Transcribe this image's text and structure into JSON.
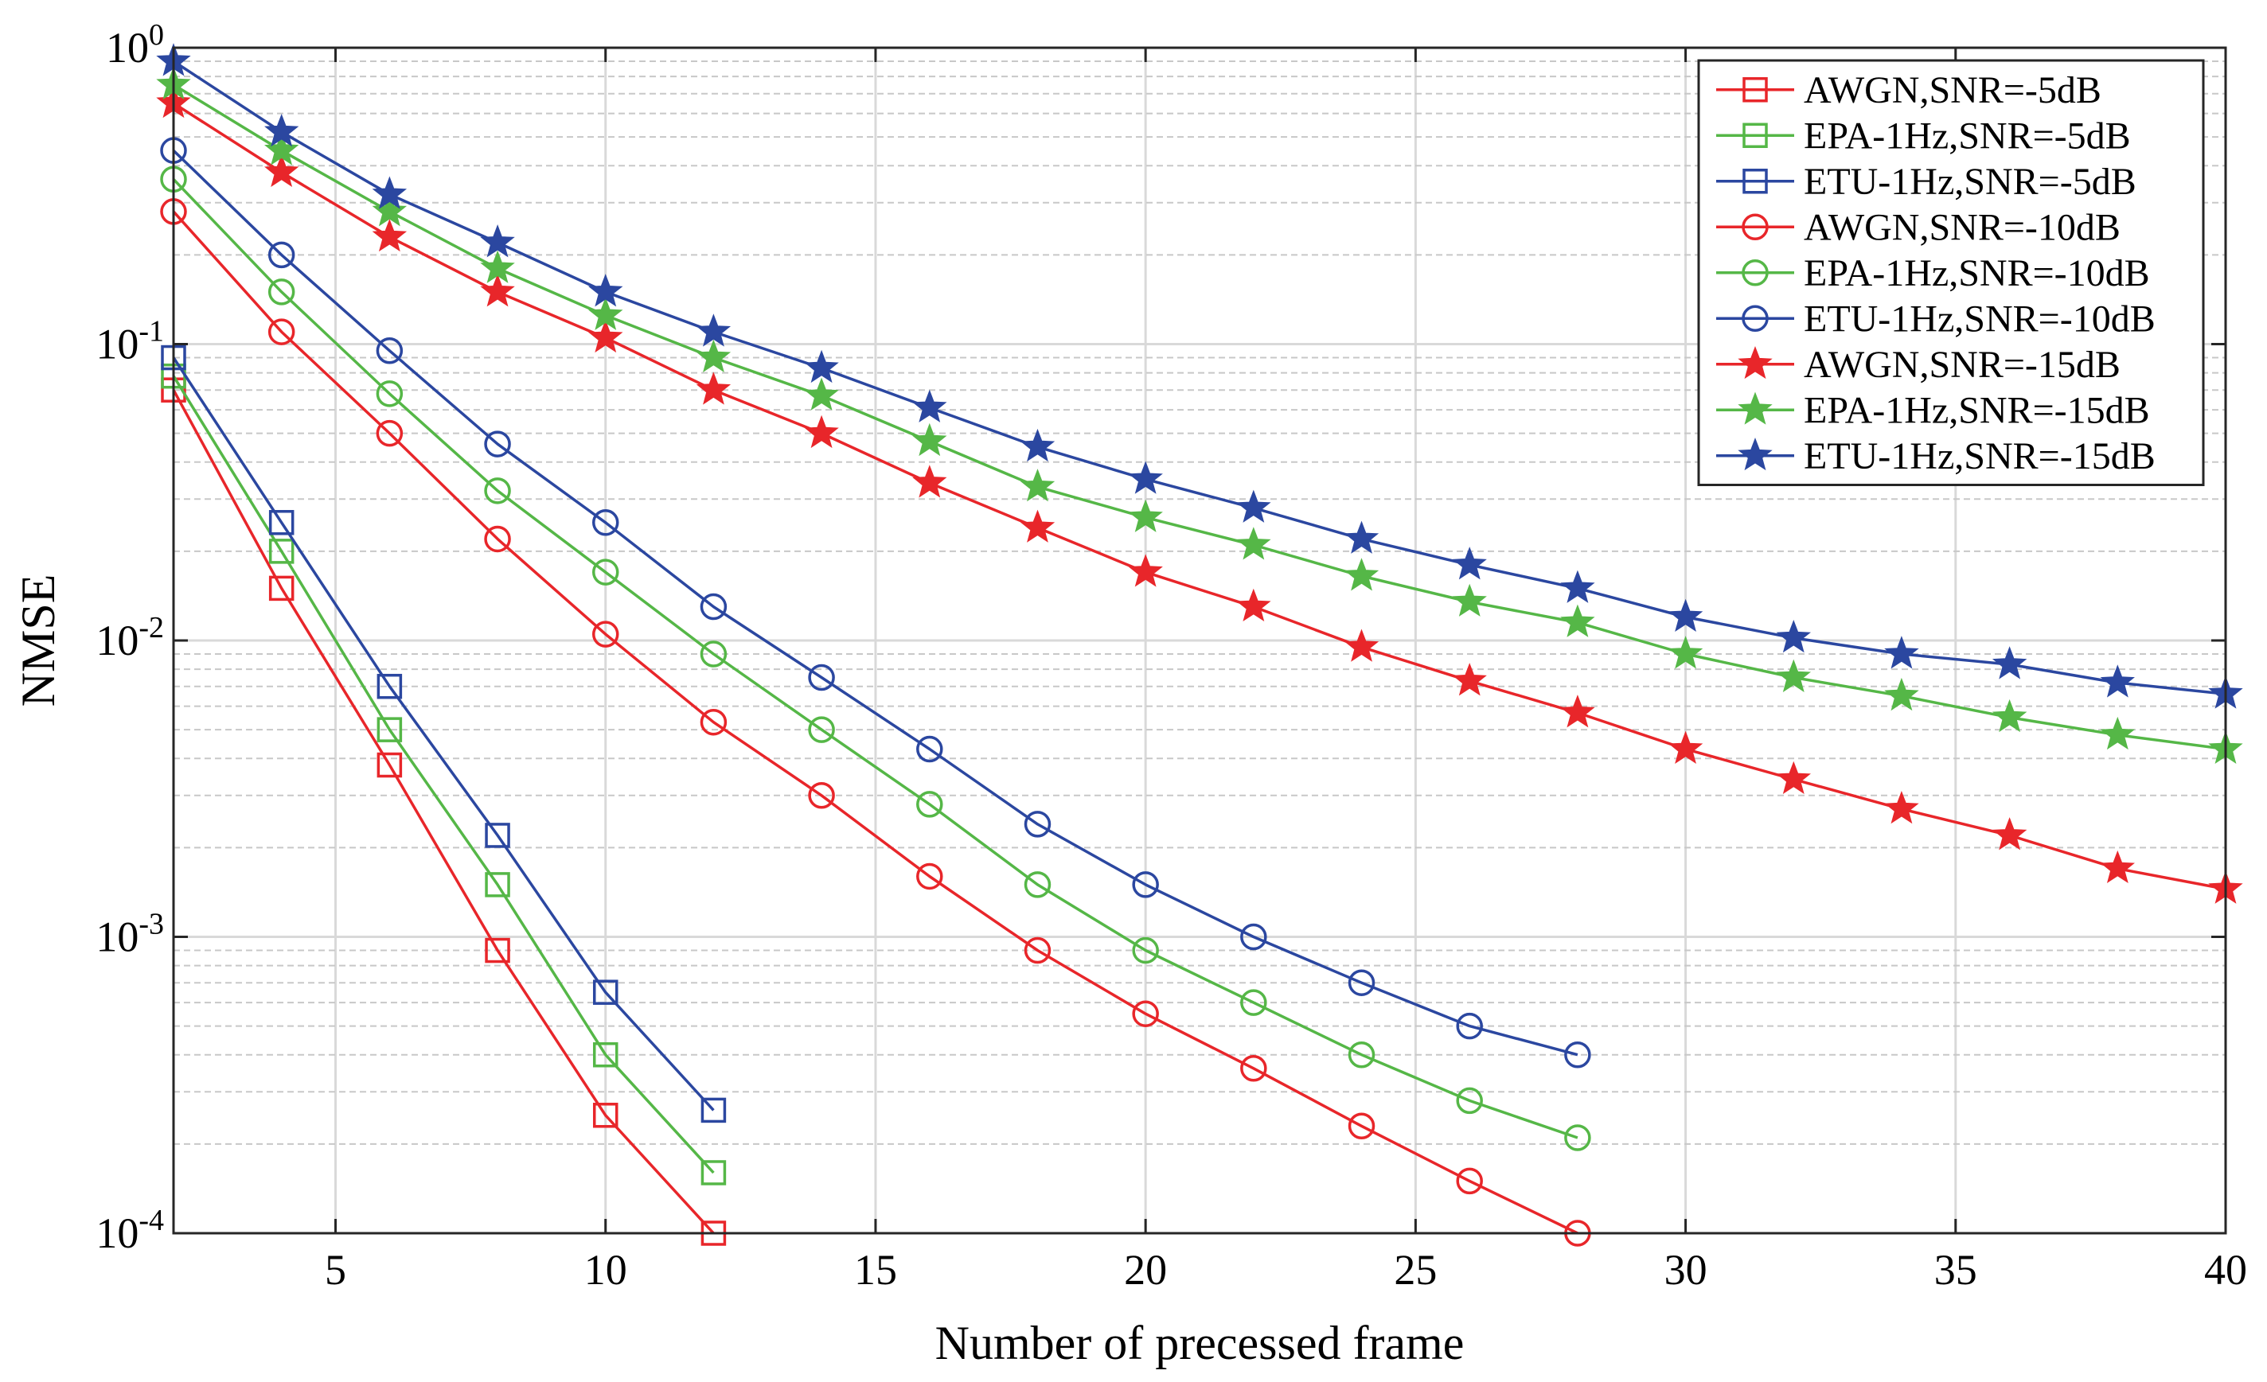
{
  "chart_data": {
    "type": "line",
    "title": "",
    "xlabel": "Number of precessed frame",
    "ylabel": "NMSE",
    "xscale": "linear",
    "yscale": "log",
    "xlim": [
      2,
      40
    ],
    "ylim": [
      0.0001,
      1
    ],
    "xticks": [
      5,
      10,
      15,
      20,
      25,
      30,
      35,
      40
    ],
    "xtick_labels": [
      "5",
      "10",
      "15",
      "20",
      "25",
      "30",
      "35",
      "40"
    ],
    "yticks": [
      0.0001,
      0.001,
      0.01,
      0.1,
      1
    ],
    "ytick_labels": [
      {
        "base": "10",
        "exp": "-4"
      },
      {
        "base": "10",
        "exp": "-3"
      },
      {
        "base": "10",
        "exp": "-2"
      },
      {
        "base": "10",
        "exp": "-1"
      },
      {
        "base": "10",
        "exp": "0"
      }
    ],
    "grid": true,
    "legend_position": "top-right",
    "colors": {
      "red": "#e8262a",
      "green": "#55b747",
      "blue": "#2b47a0"
    },
    "series": [
      {
        "name": "AWGN,SNR=-5dB",
        "color": "red",
        "marker": "square",
        "x": [
          2,
          4,
          6,
          8,
          10,
          12
        ],
        "y": [
          0.07,
          0.015,
          0.0038,
          0.0009,
          0.00025,
          0.0001
        ]
      },
      {
        "name": "EPA-1Hz,SNR=-5dB",
        "color": "green",
        "marker": "square",
        "x": [
          2,
          4,
          6,
          8,
          10,
          12
        ],
        "y": [
          0.078,
          0.02,
          0.005,
          0.0015,
          0.0004,
          0.00016
        ]
      },
      {
        "name": "ETU-1Hz,SNR=-5dB",
        "color": "blue",
        "marker": "square",
        "x": [
          2,
          4,
          6,
          8,
          10,
          12
        ],
        "y": [
          0.09,
          0.025,
          0.007,
          0.0022,
          0.00065,
          0.00026
        ]
      },
      {
        "name": "AWGN,SNR=-10dB",
        "color": "red",
        "marker": "circle",
        "x": [
          2,
          4,
          6,
          8,
          10,
          12,
          14,
          16,
          18,
          20,
          22,
          24,
          26,
          28
        ],
        "y": [
          0.28,
          0.11,
          0.05,
          0.022,
          0.0105,
          0.0053,
          0.003,
          0.0016,
          0.0009,
          0.00055,
          0.00036,
          0.00023,
          0.00015,
          0.0001
        ]
      },
      {
        "name": "EPA-1Hz,SNR=-10dB",
        "color": "green",
        "marker": "circle",
        "x": [
          2,
          4,
          6,
          8,
          10,
          12,
          14,
          16,
          18,
          20,
          22,
          24,
          26,
          28
        ],
        "y": [
          0.36,
          0.15,
          0.068,
          0.032,
          0.017,
          0.009,
          0.005,
          0.0028,
          0.0015,
          0.0009,
          0.0006,
          0.0004,
          0.00028,
          0.00021
        ]
      },
      {
        "name": "ETU-1Hz,SNR=-10dB",
        "color": "blue",
        "marker": "circle",
        "x": [
          2,
          4,
          6,
          8,
          10,
          12,
          14,
          16,
          18,
          20,
          22,
          24,
          26,
          28
        ],
        "y": [
          0.45,
          0.2,
          0.095,
          0.046,
          0.025,
          0.013,
          0.0075,
          0.0043,
          0.0024,
          0.0015,
          0.001,
          0.0007,
          0.0005,
          0.0004
        ]
      },
      {
        "name": "AWGN,SNR=-15dB",
        "color": "red",
        "marker": "star",
        "x": [
          2,
          4,
          6,
          8,
          10,
          12,
          14,
          16,
          18,
          20,
          22,
          24,
          26,
          28,
          30,
          32,
          34,
          36,
          38,
          40
        ],
        "y": [
          0.65,
          0.38,
          0.23,
          0.15,
          0.105,
          0.07,
          0.05,
          0.034,
          0.024,
          0.017,
          0.013,
          0.0095,
          0.0073,
          0.0057,
          0.0043,
          0.0034,
          0.0027,
          0.0022,
          0.0017,
          0.00145
        ]
      },
      {
        "name": "EPA-1Hz,SNR=-15dB",
        "color": "green",
        "marker": "star",
        "x": [
          2,
          4,
          6,
          8,
          10,
          12,
          14,
          16,
          18,
          20,
          22,
          24,
          26,
          28,
          30,
          32,
          34,
          36,
          38,
          40
        ],
        "y": [
          0.75,
          0.45,
          0.28,
          0.18,
          0.125,
          0.09,
          0.067,
          0.047,
          0.033,
          0.026,
          0.021,
          0.0165,
          0.0135,
          0.0115,
          0.009,
          0.0075,
          0.0065,
          0.0055,
          0.0048,
          0.0043
        ]
      },
      {
        "name": "ETU-1Hz,SNR=-15dB",
        "color": "blue",
        "marker": "star",
        "x": [
          2,
          4,
          6,
          8,
          10,
          12,
          14,
          16,
          18,
          20,
          22,
          24,
          26,
          28,
          30,
          32,
          34,
          36,
          38,
          40
        ],
        "y": [
          0.9,
          0.52,
          0.32,
          0.22,
          0.15,
          0.11,
          0.083,
          0.061,
          0.045,
          0.035,
          0.028,
          0.022,
          0.018,
          0.015,
          0.012,
          0.0102,
          0.009,
          0.0083,
          0.0072,
          0.0066
        ]
      }
    ]
  }
}
